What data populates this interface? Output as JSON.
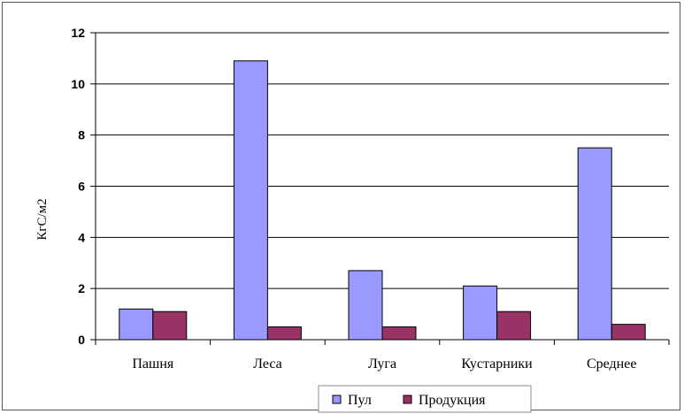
{
  "chart_data": {
    "type": "bar",
    "title": "",
    "xlabel": "",
    "ylabel": "КгС/м2",
    "ylim": [
      0,
      12
    ],
    "yticks": [
      0,
      2,
      4,
      6,
      8,
      10,
      12
    ],
    "grid": true,
    "legend_position": "bottom",
    "categories": [
      "Пашня",
      "Леса",
      "Луга",
      "Кустарники",
      "Среднее"
    ],
    "series": [
      {
        "name": "Пул",
        "color": "#9999ff",
        "values": [
          1.2,
          10.9,
          2.7,
          2.1,
          7.5
        ]
      },
      {
        "name": "Продукция",
        "color": "#993366",
        "values": [
          1.1,
          0.5,
          0.5,
          1.1,
          0.6
        ]
      }
    ]
  }
}
